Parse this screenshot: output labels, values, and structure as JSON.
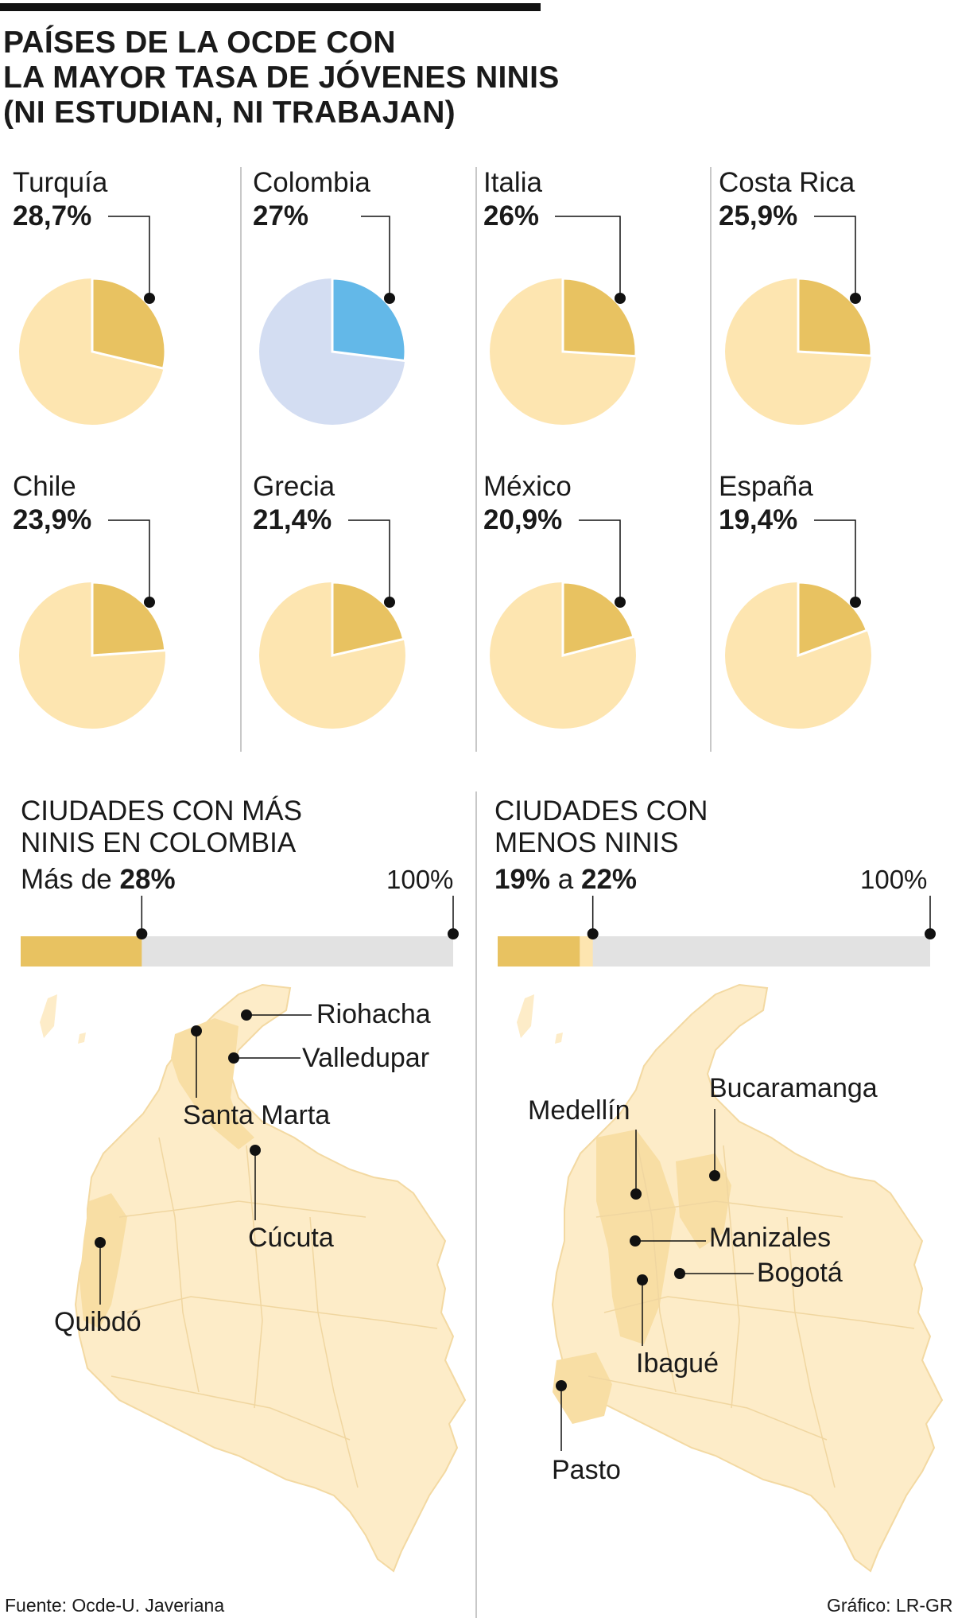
{
  "title": {
    "line1": "PAÍSES DE LA OCDE CON",
    "line2": "LA MAYOR TASA DE JÓVENES NINIS",
    "line3": "(NI ESTUDIAN, NI TRABAJAN)"
  },
  "colors": {
    "slice": "#e8c261",
    "rest": "#fde5b0",
    "highlight_slice": "#63b8e8",
    "highlight_rest": "#d3ddf2",
    "bar_bg": "#e2e2e2",
    "map_fill": "#fdecc8",
    "map_region": "#f8dea4"
  },
  "chart_data": [
    {
      "type": "pie",
      "title": "PAÍSES DE LA OCDE CON LA MAYOR TASA DE JÓVENES NINIS (NI ESTUDIAN, NI TRABAJAN)",
      "series": [
        {
          "name": "Turquía",
          "value": 28.7,
          "label": "28,7%",
          "highlight": false
        },
        {
          "name": "Colombia",
          "value": 27.0,
          "label": "27%",
          "highlight": true
        },
        {
          "name": "Italia",
          "value": 26.0,
          "label": "26%",
          "highlight": false
        },
        {
          "name": "Costa Rica",
          "value": 25.9,
          "label": "25,9%",
          "highlight": false
        },
        {
          "name": "Chile",
          "value": 23.9,
          "label": "23,9%",
          "highlight": false
        },
        {
          "name": "Grecia",
          "value": 21.4,
          "label": "21,4%",
          "highlight": false
        },
        {
          "name": "México",
          "value": 20.9,
          "label": "20,9%",
          "highlight": false
        },
        {
          "name": "España",
          "value": 19.4,
          "label": "19,4%",
          "highlight": false
        }
      ]
    },
    {
      "type": "bar",
      "title": "CIUDADES CON MÁS NINIS EN COLOMBIA",
      "range_prefix": "Más de",
      "range_value": "28%",
      "value": 28,
      "max_label": "100%",
      "max": 100,
      "cities": [
        "Riohacha",
        "Valledupar",
        "Santa Marta",
        "Cúcuta",
        "Quibdó"
      ]
    },
    {
      "type": "bar",
      "title": "CIUDADES CON MENOS NINIS",
      "range_low": "19%",
      "range_joiner": "a",
      "range_high": "22%",
      "low": 19,
      "high": 22,
      "max_label": "100%",
      "max": 100,
      "cities": [
        "Bucaramanga",
        "Medellín",
        "Manizales",
        "Bogotá",
        "Ibagué",
        "Pasto"
      ]
    }
  ],
  "left_section": {
    "title_line1": "CIUDADES CON MÁS",
    "title_line2": "NINIS EN COLOMBIA",
    "range_prefix": "Más de",
    "range_value": "28%",
    "max_label": "100%",
    "cities": {
      "riohacha": "Riohacha",
      "valledupar": "Valledupar",
      "santa_marta": "Santa Marta",
      "cucuta": "Cúcuta",
      "quibdo": "Quibdó"
    }
  },
  "right_section": {
    "title_line1": "CIUDADES CON",
    "title_line2": "MENOS NINIS",
    "range_low": "19%",
    "range_joiner": "a",
    "range_high": "22%",
    "max_label": "100%",
    "cities": {
      "bucaramanga": "Bucaramanga",
      "medellin": "Medellín",
      "manizales": "Manizales",
      "bogota": "Bogotá",
      "ibague": "Ibagué",
      "pasto": "Pasto"
    }
  },
  "footer": {
    "source": "Fuente: Ocde-U. Javeriana",
    "credit": "Gráfico: LR-GR"
  }
}
